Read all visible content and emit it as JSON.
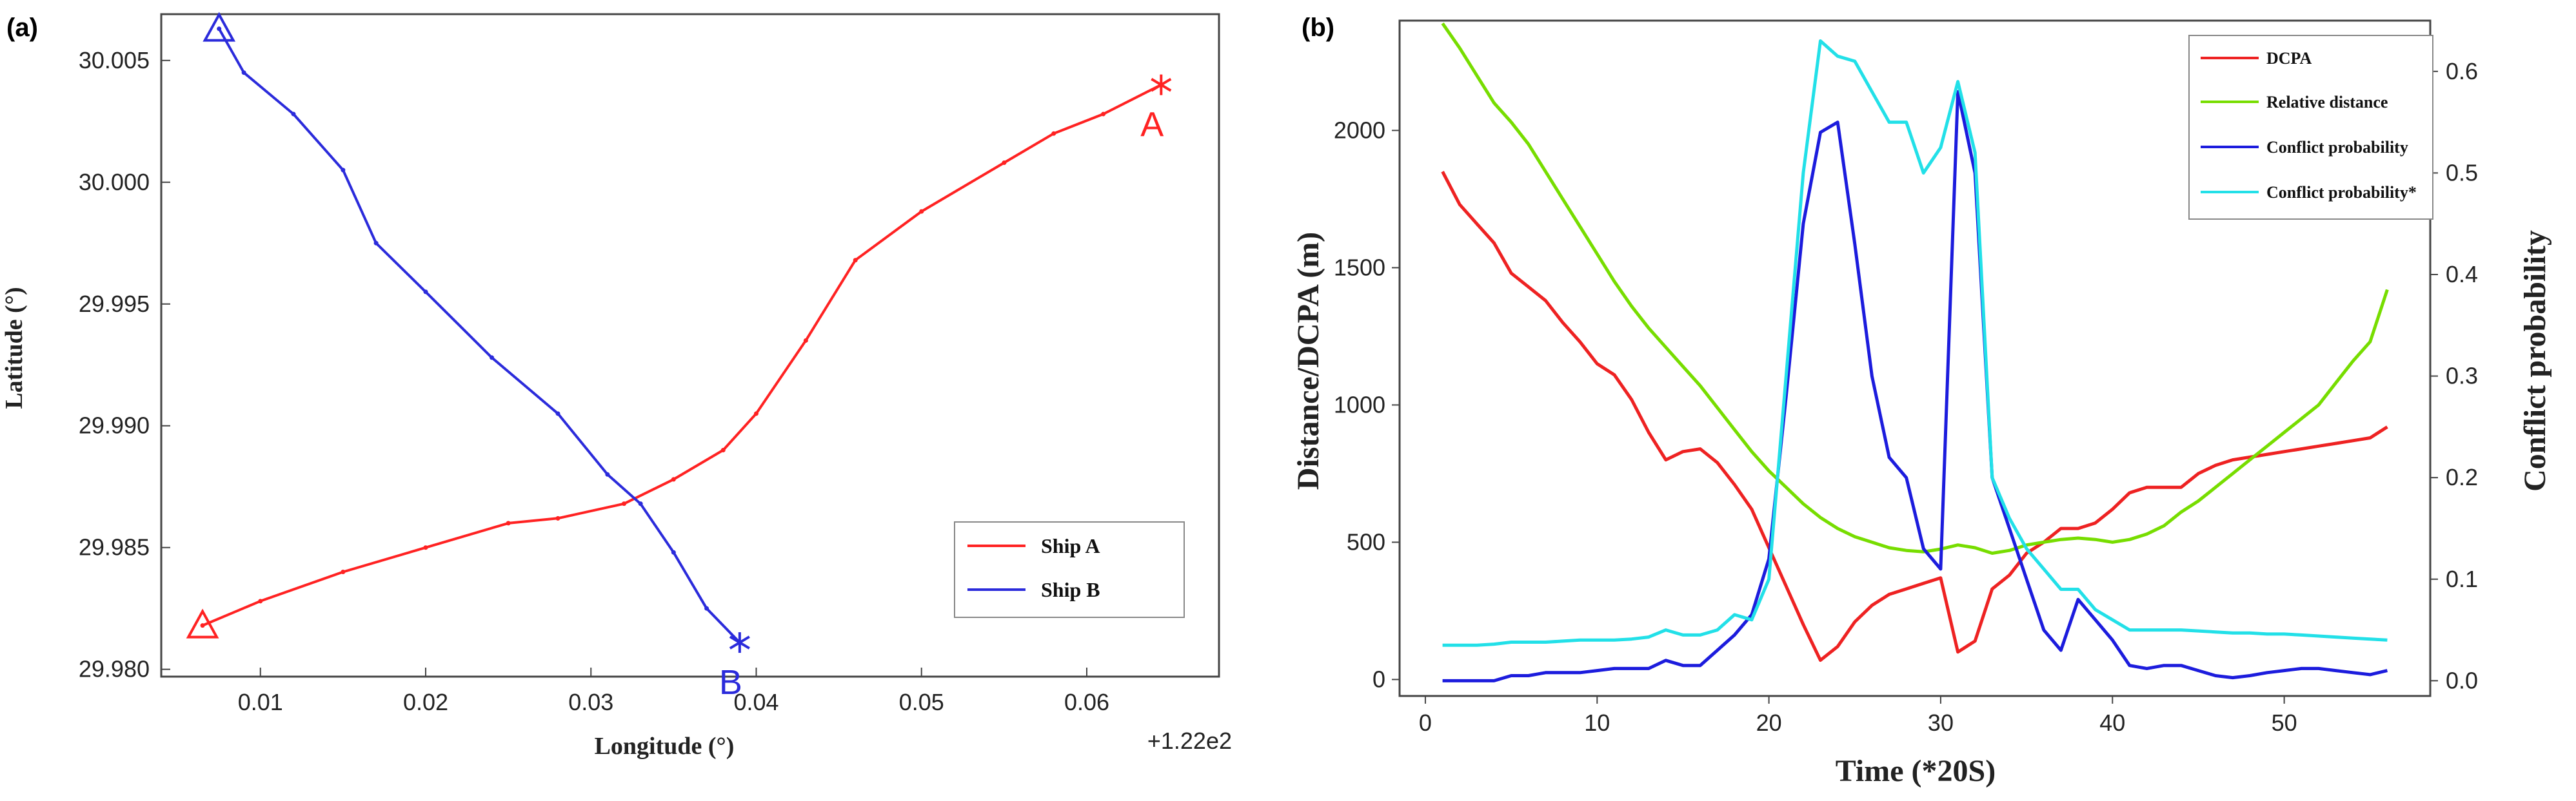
{
  "chart_data": [
    {
      "panel": "(a)",
      "type": "line",
      "xlabel": "Longitude (°)",
      "ylabel": "Latitude (°)",
      "offset_text": "+1.22e2",
      "xlim": [
        0.004,
        0.068
      ],
      "ylim": [
        29.9797,
        30.0069
      ],
      "xticks": [
        0.01,
        0.02,
        0.03,
        0.04,
        0.05,
        0.06
      ],
      "xtick_labels": [
        "0.01",
        "0.02",
        "0.03",
        "0.04",
        "0.05",
        "0.06"
      ],
      "yticks": [
        29.98,
        29.985,
        29.99,
        29.995,
        30.0,
        30.005
      ],
      "ytick_labels": [
        "29.980",
        "29.985",
        "29.990",
        "29.995",
        "30.000",
        "30.005"
      ],
      "legend": [
        "Ship A",
        "Ship B"
      ],
      "series": [
        {
          "name": "Ship A",
          "color": "#ff2222",
          "points": [
            [
              0.0065,
              29.9818
            ],
            [
              0.01,
              29.9828
            ],
            [
              0.015,
              29.984
            ],
            [
              0.02,
              29.985
            ],
            [
              0.025,
              29.986
            ],
            [
              0.028,
              29.9862
            ],
            [
              0.032,
              29.9868
            ],
            [
              0.035,
              29.9878
            ],
            [
              0.038,
              29.989
            ],
            [
              0.04,
              29.9905
            ],
            [
              0.043,
              29.9935
            ],
            [
              0.046,
              29.9968
            ],
            [
              0.05,
              29.9988
            ],
            [
              0.055,
              30.0008
            ],
            [
              0.058,
              30.002
            ],
            [
              0.061,
              30.0028
            ],
            [
              0.0645,
              30.004
            ]
          ],
          "start_marker": "triangle",
          "end_marker": "star",
          "end_label": "A"
        },
        {
          "name": "Ship B",
          "color": "#2b2bdb",
          "points": [
            [
              0.0075,
              30.0063
            ],
            [
              0.009,
              30.0045
            ],
            [
              0.012,
              30.0028
            ],
            [
              0.015,
              30.0005
            ],
            [
              0.017,
              29.9975
            ],
            [
              0.02,
              29.9955
            ],
            [
              0.024,
              29.9928
            ],
            [
              0.028,
              29.9905
            ],
            [
              0.031,
              29.988
            ],
            [
              0.033,
              29.9868
            ],
            [
              0.035,
              29.9848
            ],
            [
              0.037,
              29.9825
            ],
            [
              0.039,
              29.9811
            ]
          ],
          "start_marker": "triangle",
          "end_marker": "star",
          "end_label": "B"
        }
      ]
    },
    {
      "panel": "(b)",
      "type": "line",
      "xlabel": "Time (*20S)",
      "ylabel": "Distance/DCPA (m)",
      "y2label": "Conflict probability",
      "xlim": [
        -1.5,
        58.5
      ],
      "ylim": [
        -60,
        2400
      ],
      "y2lim": [
        -0.015,
        0.65
      ],
      "xticks": [
        0,
        10,
        20,
        30,
        40,
        50
      ],
      "xtick_labels": [
        "0",
        "10",
        "20",
        "30",
        "40",
        "50"
      ],
      "yticks": [
        0,
        500,
        1000,
        1500,
        2000
      ],
      "ytick_labels": [
        "0",
        "500",
        "1000",
        "1500",
        "2000"
      ],
      "y2ticks": [
        0.0,
        0.1,
        0.2,
        0.3,
        0.4,
        0.5,
        0.6
      ],
      "y2tick_labels": [
        "0.0",
        "0.1",
        "0.2",
        "0.3",
        "0.4",
        "0.5",
        "0.6"
      ],
      "legend": [
        "DCPA",
        "Relative distance",
        "Conflict probability",
        "Conflict probability*"
      ],
      "series": [
        {
          "name": "DCPA",
          "axis": "left",
          "color": "#ee2222",
          "x": [
            1,
            2,
            3,
            4,
            5,
            6,
            7,
            8,
            9,
            10,
            11,
            12,
            13,
            14,
            15,
            16,
            17,
            18,
            19,
            20,
            21,
            22,
            23,
            24,
            25,
            26,
            27,
            28,
            29,
            30,
            31,
            32,
            33,
            34,
            35,
            36,
            37,
            38,
            39,
            40,
            41,
            42,
            43,
            44,
            45,
            46,
            47,
            48,
            49,
            50,
            51,
            52,
            53,
            54,
            55,
            56
          ],
          "values": [
            1850,
            1730,
            1660,
            1590,
            1480,
            1430,
            1380,
            1300,
            1230,
            1150,
            1110,
            1020,
            900,
            800,
            830,
            840,
            790,
            710,
            620,
            480,
            340,
            200,
            70,
            120,
            210,
            270,
            310,
            330,
            350,
            370,
            100,
            140,
            330,
            380,
            460,
            500,
            550,
            550,
            570,
            620,
            680,
            700,
            700,
            700,
            750,
            780,
            800,
            810,
            820,
            830,
            840,
            850,
            860,
            870,
            880,
            920
          ]
        },
        {
          "name": "Relative distance",
          "axis": "left",
          "color": "#77dd00",
          "x": [
            1,
            2,
            3,
            4,
            5,
            6,
            7,
            8,
            9,
            10,
            11,
            12,
            13,
            14,
            15,
            16,
            17,
            18,
            19,
            20,
            21,
            22,
            23,
            24,
            25,
            26,
            27,
            28,
            29,
            30,
            31,
            32,
            33,
            34,
            35,
            36,
            37,
            38,
            39,
            40,
            41,
            42,
            43,
            44,
            45,
            46,
            47,
            48,
            49,
            50,
            51,
            52,
            53,
            54,
            55,
            56
          ],
          "values": [
            2390,
            2300,
            2200,
            2100,
            2030,
            1950,
            1850,
            1750,
            1650,
            1550,
            1450,
            1360,
            1280,
            1210,
            1140,
            1070,
            990,
            910,
            830,
            760,
            700,
            640,
            590,
            550,
            520,
            500,
            480,
            470,
            465,
            475,
            490,
            480,
            460,
            470,
            490,
            500,
            510,
            515,
            510,
            500,
            510,
            530,
            560,
            610,
            650,
            700,
            750,
            800,
            850,
            900,
            950,
            1000,
            1080,
            1160,
            1230,
            1420
          ]
        },
        {
          "name": "Conflict probability",
          "axis": "right",
          "color": "#1c1cdd",
          "x": [
            1,
            2,
            3,
            4,
            5,
            6,
            7,
            8,
            9,
            10,
            11,
            12,
            13,
            14,
            15,
            16,
            17,
            18,
            19,
            20,
            21,
            22,
            23,
            24,
            25,
            26,
            27,
            28,
            29,
            30,
            31,
            32,
            33,
            34,
            35,
            36,
            37,
            38,
            39,
            40,
            41,
            42,
            43,
            44,
            45,
            46,
            47,
            48,
            49,
            50,
            51,
            52,
            53,
            54,
            55,
            56
          ],
          "values": [
            0.0,
            0.0,
            0.0,
            0.0,
            0.005,
            0.005,
            0.008,
            0.008,
            0.008,
            0.01,
            0.012,
            0.012,
            0.012,
            0.02,
            0.015,
            0.015,
            0.03,
            0.045,
            0.065,
            0.12,
            0.28,
            0.45,
            0.54,
            0.55,
            0.43,
            0.3,
            0.22,
            0.2,
            0.13,
            0.11,
            0.58,
            0.5,
            0.2,
            0.15,
            0.1,
            0.05,
            0.03,
            0.08,
            0.06,
            0.04,
            0.015,
            0.012,
            0.015,
            0.015,
            0.01,
            0.005,
            0.003,
            0.005,
            0.008,
            0.01,
            0.012,
            0.012,
            0.01,
            0.008,
            0.006,
            0.01
          ]
        },
        {
          "name": "Conflict probability*",
          "axis": "right",
          "color": "#22e0e8",
          "x": [
            1,
            2,
            3,
            4,
            5,
            6,
            7,
            8,
            9,
            10,
            11,
            12,
            13,
            14,
            15,
            16,
            17,
            18,
            19,
            20,
            21,
            22,
            23,
            24,
            25,
            26,
            27,
            28,
            29,
            30,
            31,
            32,
            33,
            34,
            35,
            36,
            37,
            38,
            39,
            40,
            41,
            42,
            43,
            44,
            45,
            46,
            47,
            48,
            49,
            50,
            51,
            52,
            53,
            54,
            55,
            56
          ],
          "values": [
            0.035,
            0.035,
            0.035,
            0.036,
            0.038,
            0.038,
            0.038,
            0.039,
            0.04,
            0.04,
            0.04,
            0.041,
            0.043,
            0.05,
            0.045,
            0.045,
            0.05,
            0.065,
            0.06,
            0.1,
            0.3,
            0.5,
            0.63,
            0.615,
            0.61,
            0.58,
            0.55,
            0.55,
            0.5,
            0.525,
            0.59,
            0.52,
            0.2,
            0.16,
            0.13,
            0.11,
            0.09,
            0.09,
            0.07,
            0.06,
            0.05,
            0.05,
            0.05,
            0.05,
            0.049,
            0.048,
            0.047,
            0.047,
            0.046,
            0.046,
            0.045,
            0.044,
            0.043,
            0.042,
            0.041,
            0.04
          ]
        }
      ]
    }
  ]
}
